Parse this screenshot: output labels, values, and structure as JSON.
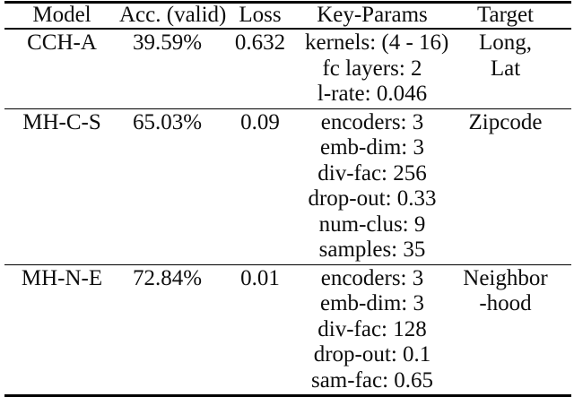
{
  "colors": {
    "background": "#ffffff",
    "text": "#0d0d0d",
    "rule": "#000000"
  },
  "table": {
    "columns": [
      "Model",
      "Acc. (valid)",
      "Loss",
      "Key-Params",
      "Target"
    ],
    "rows": [
      {
        "model": "CCH-A",
        "acc": "39.59%",
        "loss": "0.632",
        "key_params": [
          "kernels: (4 - 16)",
          "fc layers: 2",
          "l-rate: 0.046"
        ],
        "target": [
          "Long,",
          "Lat"
        ]
      },
      {
        "model": "MH-C-S",
        "acc": "65.03%",
        "loss": "0.09",
        "key_params": [
          "encoders: 3",
          "emb-dim: 3",
          "div-fac: 256",
          "drop-out: 0.33",
          "num-clus: 9",
          "samples: 35"
        ],
        "target": [
          "Zipcode"
        ]
      },
      {
        "model": "MH-N-E",
        "acc": "72.84%",
        "loss": "0.01",
        "key_params": [
          "encoders: 3",
          "emb-dim: 3",
          "div-fac: 128",
          "drop-out: 0.1",
          "sam-fac: 0.65"
        ],
        "target": [
          "Neighbor",
          "-hood"
        ]
      }
    ]
  }
}
